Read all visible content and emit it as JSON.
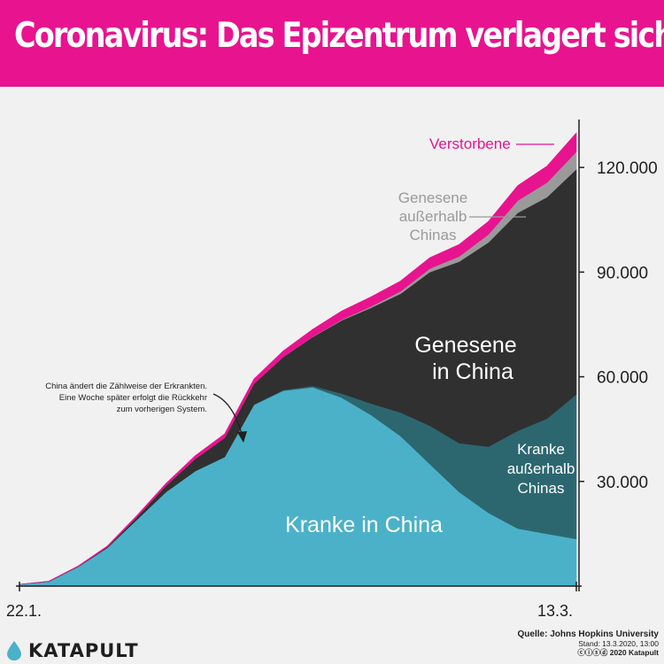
{
  "title": "Coronavirus: Das Epizentrum verlagert sich",
  "colors": {
    "banner": "#e8138f",
    "background": "#f1f1f1",
    "kranke_china": "#4bb1c9",
    "kranke_ausserhalb": "#2c6770",
    "genesene_china": "#303030",
    "genesene_ausserhalb": "#9a9a9a",
    "verstorbene": "#e8138f"
  },
  "chart_data": {
    "type": "area",
    "stacked": true,
    "x_start_label": "22.1.",
    "x_end_label": "13.3.",
    "x": [
      "22.1.",
      "25.1.",
      "28.1.",
      "31.1.",
      "3.2.",
      "6.2.",
      "9.2.",
      "12.2.",
      "13.2.",
      "16.2.",
      "19.2.",
      "22.2.",
      "25.2.",
      "28.2.",
      "2.3.",
      "5.3.",
      "8.3.",
      "11.3.",
      "12.3.",
      "13.3."
    ],
    "ylim": [
      0,
      135000
    ],
    "yticks": [
      30000,
      60000,
      90000,
      120000
    ],
    "ytick_labels": [
      "30.000",
      "60.000",
      "90.000",
      "120.000"
    ],
    "series": [
      {
        "name": "Kranke in China",
        "values": [
          500,
          1300,
          5500,
          11000,
          19000,
          27000,
          33000,
          37000,
          52000,
          56000,
          57000,
          54000,
          49000,
          43000,
          35000,
          27000,
          21000,
          16500,
          15000,
          13500
        ]
      },
      {
        "name": "Kranke außerhalb Chinas",
        "values": [
          0,
          0,
          0,
          0,
          0,
          0,
          0,
          0,
          0,
          200,
          400,
          1200,
          3300,
          6800,
          11000,
          14000,
          19000,
          28000,
          33000,
          41500
        ]
      },
      {
        "name": "Genesene in China",
        "values": [
          0,
          50,
          100,
          250,
          750,
          1800,
          3500,
          5500,
          6000,
          9500,
          14000,
          21000,
          27500,
          34000,
          44000,
          52000,
          58500,
          62500,
          63500,
          64500
        ]
      },
      {
        "name": "Genesene außerhalb Chinas",
        "values": [
          0,
          0,
          0,
          0,
          0,
          0,
          0,
          0,
          0,
          20,
          80,
          200,
          400,
          700,
          1000,
          1500,
          2300,
          3500,
          4200,
          5000
        ]
      },
      {
        "name": "Verstorbene",
        "values": [
          20,
          60,
          150,
          260,
          430,
          640,
          910,
          1120,
          1390,
          1700,
          2100,
          2500,
          2750,
          2950,
          3150,
          3420,
          3750,
          4300,
          4700,
          5400
        ]
      }
    ],
    "labels": {
      "kranke_china": "Kranke in China",
      "kranke_ausserhalb": [
        "Kranke",
        "außerhalb",
        "Chinas"
      ],
      "genesene_china": [
        "Genesene",
        "in China"
      ],
      "genesene_ausserhalb": [
        "Genesene",
        "außerhalb",
        "Chinas"
      ],
      "verstorbene": "Verstorbene"
    },
    "annotation": [
      "China ändert die Zählweise der Erkrankten.",
      "Eine Woche später erfolgt die  Rückkehr",
      "zum vorherigen System."
    ]
  },
  "footer": {
    "brand": "KATAPULT",
    "source": "Quelle: Johns Hopkins University",
    "stand": "Stand: 13.3.2020, 13:00",
    "copyright": "2020 Katapult",
    "license_icons": "ⓒⓘⓢⓓ"
  }
}
